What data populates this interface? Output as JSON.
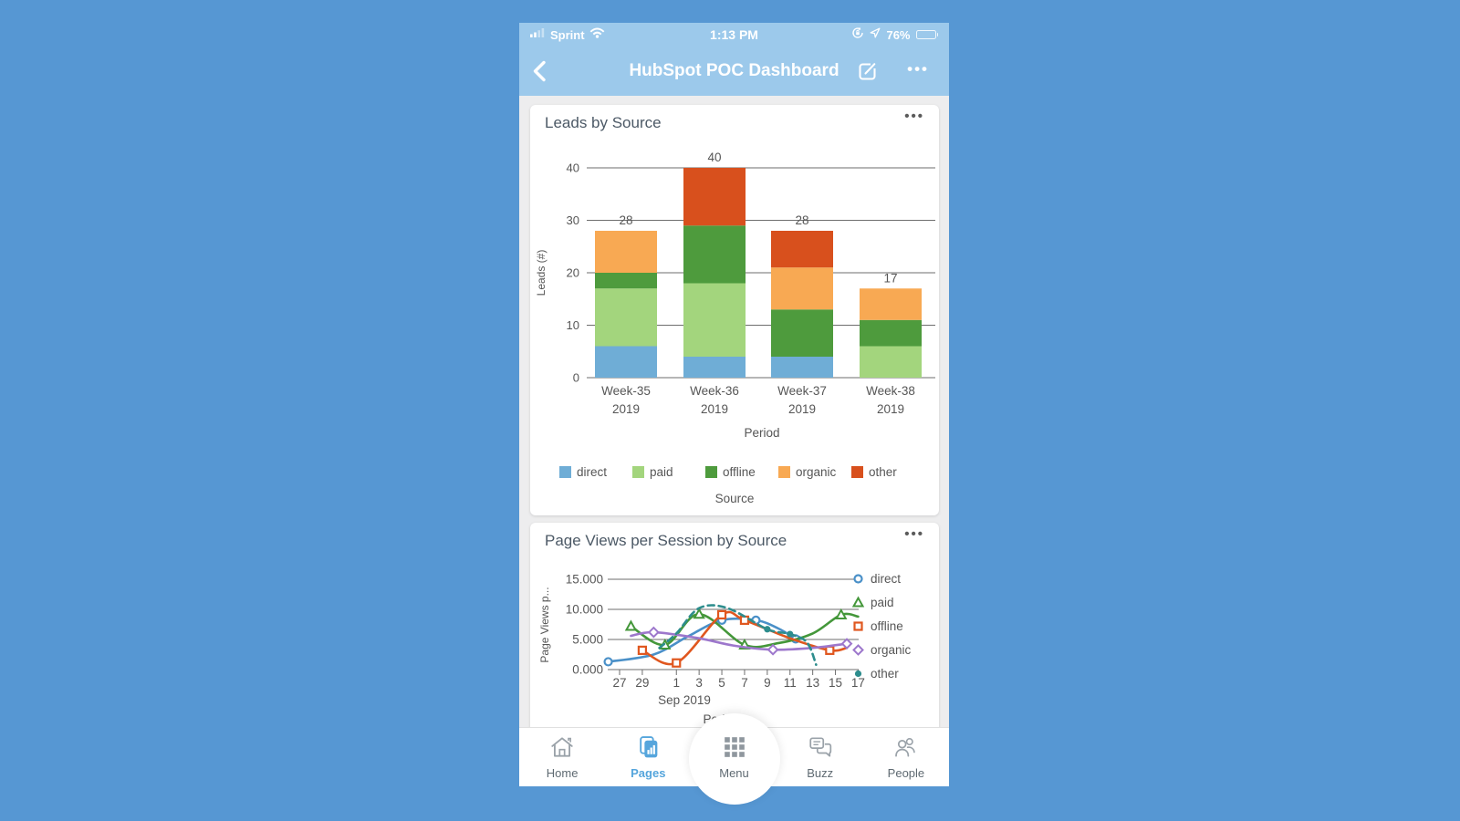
{
  "status_bar": {
    "carrier": "Sprint",
    "time": "1:13 PM",
    "battery_percent": "76%"
  },
  "header": {
    "title": "HubSpot POC Dashboard"
  },
  "cards": [
    {
      "title": "Leads by Source",
      "menu": "•••"
    },
    {
      "title": "Page Views per Session by Source",
      "menu": "•••"
    }
  ],
  "chart_data": [
    {
      "type": "bar",
      "stacked": true,
      "title": "Leads by Source",
      "categories": [
        "Week-35 2019",
        "Week-36 2019",
        "Week-37 2019",
        "Week-38 2019"
      ],
      "series": [
        {
          "name": "direct",
          "color": "#6fadd6",
          "values": [
            6,
            4,
            4,
            0
          ]
        },
        {
          "name": "paid",
          "color": "#a3d57d",
          "values": [
            11,
            14,
            0,
            6
          ]
        },
        {
          "name": "offline",
          "color": "#4e9b3d",
          "values": [
            3,
            11,
            9,
            5
          ]
        },
        {
          "name": "organic",
          "color": "#f8a953",
          "values": [
            8,
            0,
            8,
            6
          ]
        },
        {
          "name": "other",
          "color": "#d8501d",
          "values": [
            0,
            11,
            7,
            0
          ]
        }
      ],
      "totals": [
        28,
        40,
        28,
        17
      ],
      "xlabel": "Period",
      "ylabel": "Leads (#)",
      "legend_title": "Source",
      "legend_position": "bottom",
      "grid": true,
      "ylim": [
        0,
        40
      ],
      "yticks": [
        0,
        10,
        20,
        30,
        40
      ]
    },
    {
      "type": "line",
      "title": "Page Views per Session by Source",
      "xlabel": "Period",
      "ylabel": "Page Views p...",
      "x_axis_note": "Sep 2019",
      "grid": true,
      "legend_position": "right",
      "ylim": [
        0,
        15
      ],
      "yticks": [
        [
          0,
          "0.000"
        ],
        [
          5,
          "5.000"
        ],
        [
          10,
          "10.000"
        ],
        [
          15,
          "15.000"
        ]
      ],
      "x_tick_days": [
        0,
        2,
        5,
        7,
        9,
        11,
        13,
        15,
        17,
        19,
        21
      ],
      "x_tick_labels": [
        "27",
        "29",
        "1",
        "3",
        "5",
        "7",
        "9",
        "11",
        "13",
        "15",
        "17"
      ],
      "series": [
        {
          "name": "direct",
          "color": "#4a90c8",
          "marker": "circle",
          "dash": null,
          "points": [
            [
              -1,
              1.3
            ],
            [
              3,
              2.5
            ],
            [
              6,
              5.5
            ],
            [
              9,
              8.2
            ],
            [
              12,
              8.2
            ],
            [
              14,
              6.8
            ],
            [
              15.5,
              5.1
            ]
          ],
          "marker_points": [
            [
              -1,
              1.3
            ],
            [
              9,
              8.2
            ],
            [
              12,
              8.2
            ],
            [
              15.5,
              5.1
            ]
          ]
        },
        {
          "name": "paid",
          "color": "#44973a",
          "marker": "triangle",
          "dash": null,
          "points": [
            [
              1,
              7.2
            ],
            [
              4,
              4.1
            ],
            [
              7,
              9.2
            ],
            [
              11,
              4.1
            ],
            [
              14,
              4.4
            ],
            [
              17,
              6.0
            ],
            [
              19.5,
              9.1
            ],
            [
              21,
              8.8
            ]
          ],
          "marker_points": [
            [
              1,
              7.2
            ],
            [
              4,
              4.1
            ],
            [
              7,
              9.2
            ],
            [
              11,
              4.1
            ],
            [
              19.5,
              9.1
            ]
          ]
        },
        {
          "name": "offline",
          "color": "#e0571f",
          "marker": "square",
          "dash": null,
          "points": [
            [
              2,
              3.2
            ],
            [
              5,
              1.1
            ],
            [
              9,
              9.1
            ],
            [
              11,
              8.2
            ],
            [
              15,
              5.2
            ],
            [
              18.5,
              3.2
            ],
            [
              20,
              3.6
            ]
          ],
          "marker_points": [
            [
              2,
              3.2
            ],
            [
              5,
              1.1
            ],
            [
              9,
              9.1
            ],
            [
              11,
              8.2
            ],
            [
              18.5,
              3.2
            ]
          ]
        },
        {
          "name": "organic",
          "color": "#9d77cc",
          "marker": "diamond",
          "dash": null,
          "points": [
            [
              1,
              5.6
            ],
            [
              3,
              6.2
            ],
            [
              7,
              5.2
            ],
            [
              10,
              4.0
            ],
            [
              13.5,
              3.3
            ],
            [
              17,
              3.6
            ],
            [
              20,
              4.3
            ]
          ],
          "marker_points": [
            [
              3,
              6.2
            ],
            [
              13.5,
              3.3
            ],
            [
              20,
              4.3
            ]
          ]
        },
        {
          "name": "other",
          "color": "#2d8d8d",
          "marker": "dot",
          "dash": "7 5",
          "points": [
            [
              3.5,
              3.6
            ],
            [
              5,
              6.0
            ],
            [
              7,
              10.2
            ],
            [
              9.5,
              10.2
            ],
            [
              13,
              6.7
            ],
            [
              15,
              5.9
            ],
            [
              16.5,
              4.5
            ],
            [
              17.3,
              0.8
            ]
          ],
          "marker_points": [
            [
              13,
              6.7
            ],
            [
              15,
              5.9
            ]
          ]
        }
      ]
    }
  ],
  "tab_bar": {
    "items": [
      {
        "label": "Home",
        "active": false
      },
      {
        "label": "Pages",
        "active": true
      },
      {
        "label": "Menu",
        "active": false
      },
      {
        "label": "Buzz",
        "active": false
      },
      {
        "label": "People",
        "active": false
      }
    ]
  }
}
